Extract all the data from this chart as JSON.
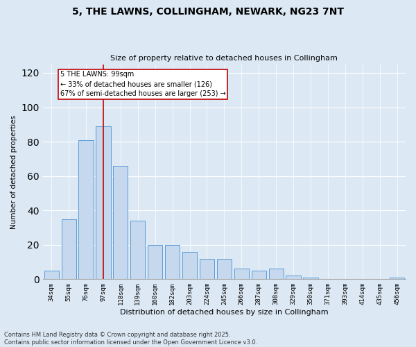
{
  "title_line1": "5, THE LAWNS, COLLINGHAM, NEWARK, NG23 7NT",
  "title_line2": "Size of property relative to detached houses in Collingham",
  "xlabel": "Distribution of detached houses by size in Collingham",
  "ylabel": "Number of detached properties",
  "categories": [
    "34sqm",
    "55sqm",
    "76sqm",
    "97sqm",
    "118sqm",
    "139sqm",
    "160sqm",
    "182sqm",
    "203sqm",
    "224sqm",
    "245sqm",
    "266sqm",
    "287sqm",
    "308sqm",
    "329sqm",
    "350sqm",
    "371sqm",
    "393sqm",
    "414sqm",
    "435sqm",
    "456sqm"
  ],
  "values": [
    5,
    35,
    81,
    89,
    66,
    34,
    20,
    20,
    16,
    12,
    12,
    6,
    5,
    6,
    2,
    1,
    0,
    0,
    0,
    0,
    1
  ],
  "bar_color": "#c5d8ed",
  "bar_edge_color": "#5b9bd5",
  "vline_x_idx": 3,
  "vline_color": "#c00000",
  "annotation_text": "5 THE LAWNS: 99sqm\n← 33% of detached houses are smaller (126)\n67% of semi-detached houses are larger (253) →",
  "annotation_box_color": "#ffffff",
  "annotation_box_edge": "#c00000",
  "ylim": [
    0,
    125
  ],
  "yticks": [
    0,
    20,
    40,
    60,
    80,
    100,
    120
  ],
  "footer_line1": "Contains HM Land Registry data © Crown copyright and database right 2025.",
  "footer_line2": "Contains public sector information licensed under the Open Government Licence v3.0.",
  "background_color": "#dce9f5",
  "plot_bg_color": "#dce9f5"
}
